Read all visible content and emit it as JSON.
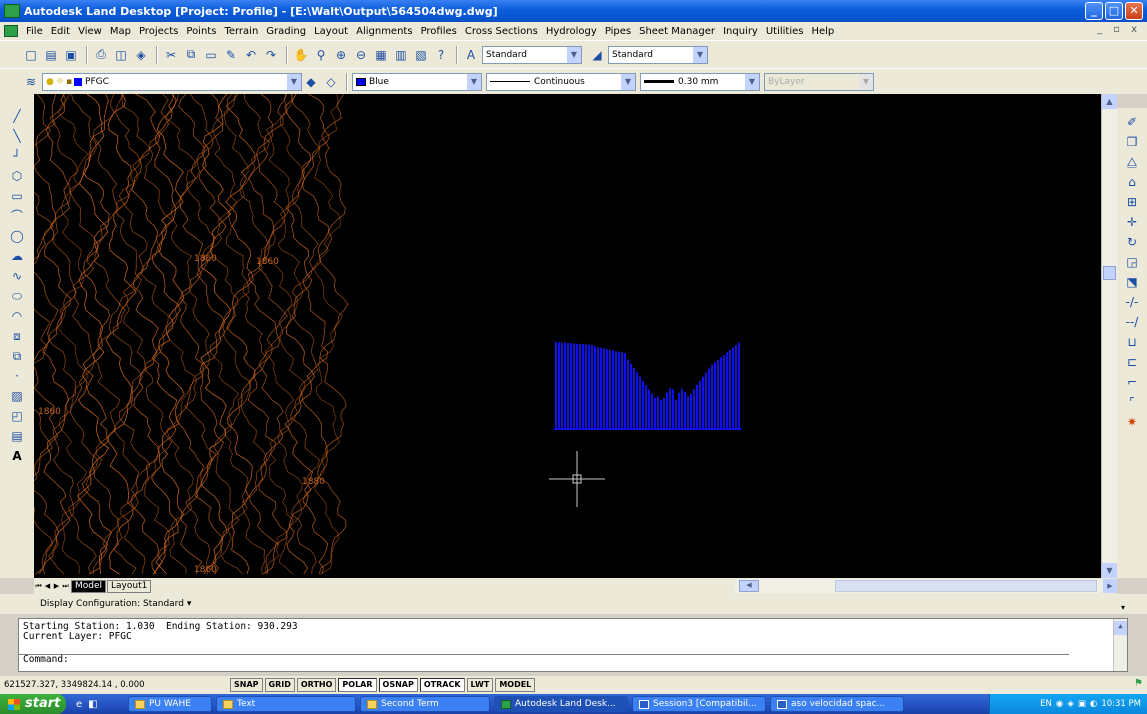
{
  "window": {
    "title": "Autodesk Land Desktop [Project: Profile] - [E:\\Walt\\Output\\564504dwg.dwg]",
    "controls": [
      "_",
      "□",
      "✕"
    ]
  },
  "menu": {
    "items": [
      "File",
      "Edit",
      "View",
      "Map",
      "Projects",
      "Points",
      "Terrain",
      "Grading",
      "Layout",
      "Alignments",
      "Profiles",
      "Cross Sections",
      "Hydrology",
      "Pipes",
      "Sheet Manager",
      "Inquiry",
      "Utilities",
      "Help"
    ],
    "mdi_controls": "_ ▫ x"
  },
  "toolbar1": {
    "text_style_value": "Standard",
    "dim_style_value": "Standard"
  },
  "toolbar2": {
    "layer_value": "PFGC",
    "color_value": "Blue",
    "linetype_value": "Continuous",
    "lineweight_value": "0.30 mm",
    "plotstyle_value": "ByLayer"
  },
  "drawing": {
    "contour_labels": [
      "1860",
      "1860",
      "1860",
      "1880",
      "1860"
    ],
    "contour_color": "#c8641e",
    "profile_color": "#1010e8",
    "crosshair_color": "#c8c8c8"
  },
  "layout_tabs": {
    "nav": [
      "⏮",
      "◀",
      "▶",
      "⏭"
    ],
    "tabs": [
      "Model",
      "Layout1"
    ]
  },
  "display_config": {
    "label": "Display Configuration:",
    "value": "Standard"
  },
  "command": {
    "lines": [
      "Starting Station: 1.030  Ending Station: 930.293",
      "Current Layer: PFGC"
    ],
    "prompt": "Command:"
  },
  "status": {
    "coords": "621527.327, 3349824.14  , 0.000",
    "buttons": [
      "SNAP",
      "GRID",
      "ORTHO",
      "POLAR",
      "OSNAP",
      "OTRACK",
      "LWT",
      "MODEL"
    ]
  },
  "taskbar": {
    "start_label": "start",
    "tasks": [
      "PU WAHE",
      "Text",
      "Second Term",
      "Autodesk Land Desk...",
      "Session3 [Compatibil...",
      "aso velocidad spac..."
    ],
    "clock": "10:31 PM",
    "lang": "EN"
  }
}
